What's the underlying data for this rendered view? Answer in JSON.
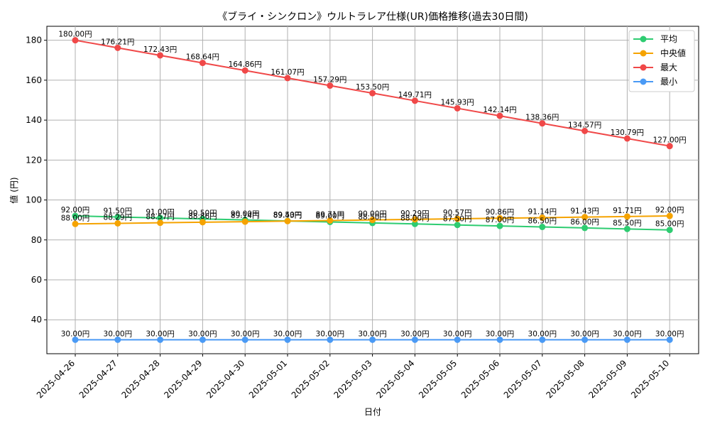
{
  "chart_data": {
    "type": "line",
    "title": "《ブライ・シンクロン》ウルトラレア仕様(UR)価格推移(過去30日間)",
    "xlabel": "日付",
    "ylabel": "値 (円)",
    "ylim": [
      23,
      187
    ],
    "yticks": [
      40,
      60,
      80,
      100,
      120,
      140,
      160,
      180
    ],
    "grid": true,
    "legend_position": "top-right",
    "label_suffix": "円",
    "categories": [
      "2025-04-26",
      "2025-04-27",
      "2025-04-28",
      "2025-04-29",
      "2025-04-30",
      "2025-05-01",
      "2025-05-02",
      "2025-05-03",
      "2025-05-04",
      "2025-05-05",
      "2025-05-06",
      "2025-05-07",
      "2025-05-08",
      "2025-05-09",
      "2025-05-10"
    ],
    "series": [
      {
        "name": "平均",
        "color": "#2ecc71",
        "values": [
          92.0,
          91.5,
          91.0,
          90.5,
          90.0,
          89.5,
          89.0,
          88.5,
          88.0,
          87.5,
          87.0,
          86.5,
          86.0,
          85.5,
          85.0
        ]
      },
      {
        "name": "中央値",
        "color": "#f5a300",
        "values": [
          88.0,
          88.29,
          88.57,
          88.86,
          89.14,
          89.43,
          89.71,
          90.0,
          90.29,
          90.57,
          90.86,
          91.14,
          91.43,
          91.71,
          92.0
        ]
      },
      {
        "name": "最大",
        "color": "#f04848",
        "values": [
          180.0,
          176.21,
          172.43,
          168.64,
          164.86,
          161.07,
          157.29,
          153.5,
          149.71,
          145.93,
          142.14,
          138.36,
          134.57,
          130.79,
          127.0
        ]
      },
      {
        "name": "最小",
        "color": "#4a9af5",
        "values": [
          30.0,
          30.0,
          30.0,
          30.0,
          30.0,
          30.0,
          30.0,
          30.0,
          30.0,
          30.0,
          30.0,
          30.0,
          30.0,
          30.0,
          30.0
        ]
      }
    ]
  }
}
